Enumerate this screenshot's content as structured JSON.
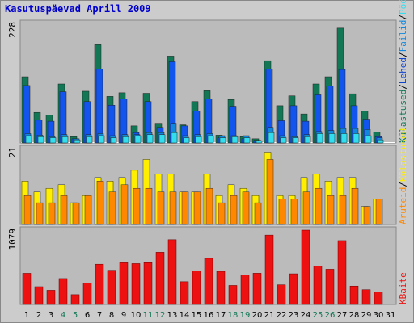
{
  "chart_data": {
    "type": "bar",
    "title": "Kasutuspäevad Aprill 2009",
    "categories": [
      "1",
      "2",
      "3",
      "4",
      "5",
      "6",
      "7",
      "8",
      "9",
      "10",
      "11",
      "12",
      "13",
      "14",
      "15",
      "16",
      "17",
      "18",
      "19",
      "20",
      "21",
      "22",
      "23",
      "24",
      "25",
      "26",
      "27",
      "28",
      "29",
      "30",
      "31"
    ],
    "weekend_days": [
      "4",
      "5",
      "11",
      "12",
      "18",
      "19",
      "25",
      "26"
    ],
    "colors": {
      "kulastajad": "#117755",
      "kulastused": "#1155ee",
      "lehed": "#1144cc",
      "failid": "#1188dd",
      "tabamused": "#33ddee",
      "andmemaht": "#ee1111",
      "kulastused_yellow": "#ffee00",
      "lehed_orange": "#ff8800",
      "weekday_text": "#000000",
      "weekend_text": "#117755",
      "title": "#0000cc",
      "plot_bg": "#bbbbbb"
    },
    "panels": [
      {
        "name": "hits",
        "ymax_label": "228",
        "ymax": 228,
        "legend": [
          {
            "label": "Külastused",
            "color": "#117755"
          },
          {
            "label": "/",
            "color": "#000000"
          },
          {
            "label": "Lehed",
            "color": "#1144cc"
          },
          {
            "label": "/",
            "color": "#000000"
          },
          {
            "label": "Failid",
            "color": "#1188dd"
          },
          {
            "label": "/",
            "color": "#000000"
          },
          {
            "label": "Pöördumised",
            "color": "#33ddee"
          }
        ],
        "series": [
          {
            "name": "Külastused",
            "values": [
              128,
              59,
              54,
              114,
              12,
              100,
              190,
              90,
              97,
              33,
              96,
              38,
              168,
              35,
              80,
              101,
              15,
              84,
              12,
              8,
              159,
              72,
              91,
              56,
              114,
              128,
              222,
              95,
              62,
              21,
              0
            ]
          },
          {
            "name": "Lehed",
            "values": [
              111,
              44,
              42,
              99,
              8,
              80,
              143,
              73,
              85,
              20,
              80,
              30,
              157,
              33,
              62,
              85,
              10,
              71,
              8,
              5,
              143,
              43,
              72,
              42,
              93,
              110,
              142,
              72,
              46,
              12,
              0
            ]
          },
          {
            "name": "Failid",
            "values": [
              18,
              15,
              12,
              16,
              8,
              16,
              18,
              14,
              16,
              16,
              20,
              20,
              38,
              14,
              16,
              18,
              14,
              14,
              14,
              5,
              30,
              14,
              12,
              16,
              22,
              24,
              28,
              28,
              26,
              10,
              0
            ]
          },
          {
            "name": "Pöördumised",
            "values": [
              14,
              12,
              10,
              12,
              6,
              12,
              14,
              10,
              12,
              14,
              16,
              16,
              20,
              10,
              12,
              14,
              10,
              12,
              10,
              4,
              20,
              10,
              10,
              12,
              18,
              18,
              18,
              18,
              14,
              6,
              0
            ]
          }
        ]
      },
      {
        "name": "visits",
        "ymax_label": "21",
        "ymax": 21,
        "legend": [
          {
            "label": "Aruteid",
            "color": "#ff8800"
          },
          {
            "label": "/",
            "color": "#000000"
          },
          {
            "label": "Külastused",
            "color": "#ffee00"
          }
        ],
        "series": [
          {
            "name": "Külastused",
            "values": [
              12,
              9,
              10,
              11,
              6,
              8,
              13,
              12,
              13,
              15,
              18,
              14,
              14,
              9,
              9,
              14,
              8,
              11,
              10,
              8,
              20,
              8,
              8,
              13,
              14,
              12,
              13,
              13,
              5,
              7,
              0
            ]
          },
          {
            "name": "Aruteid",
            "values": [
              8,
              6,
              6,
              8,
              6,
              8,
              12,
              9,
              11,
              10,
              10,
              9,
              9,
              9,
              9,
              10,
              6,
              8,
              9,
              6,
              18,
              7,
              7,
              9,
              10,
              8,
              8,
              10,
              5,
              7,
              0
            ]
          }
        ]
      },
      {
        "name": "kbytes",
        "ymax_label": "1079",
        "ymax": 1079,
        "legend": [
          {
            "label": "KBaite",
            "color": "#ee1111"
          }
        ],
        "series": [
          {
            "name": "KBaite",
            "values": [
              452,
              258,
              206,
              376,
              142,
              313,
              584,
              496,
              606,
              593,
              607,
              758,
              940,
              330,
              488,
              670,
              480,
              276,
              430,
              453,
              1007,
              285,
              445,
              1079,
              555,
              511,
              927,
              267,
              214,
              180,
              0
            ]
          }
        ]
      }
    ]
  }
}
